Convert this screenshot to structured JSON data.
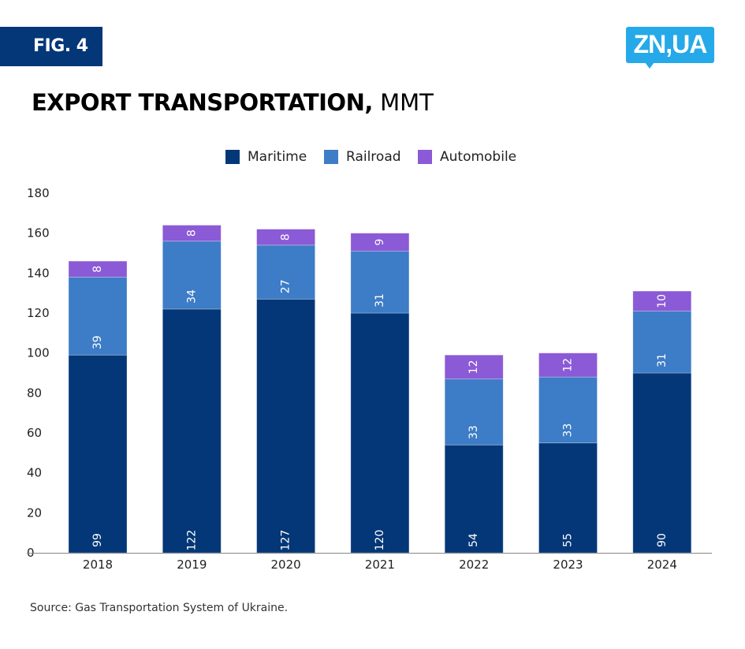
{
  "header": {
    "fig_label": "FIG. 4",
    "logo_text": "ZN,UA",
    "title_bold": "EXPORT TRANSPORTATION,",
    "title_unit": " MMT"
  },
  "colors": {
    "badge": "#043777",
    "logo": "#25a9e8",
    "maritime": "#043777",
    "railroad": "#3d7cc6",
    "automobile": "#8b5ad6"
  },
  "source": "Source: Gas Transportation System of Ukraine.",
  "chart_data": {
    "type": "bar",
    "stacked": true,
    "title": "EXPORT TRANSPORTATION, MMT",
    "xlabel": "",
    "ylabel": "",
    "ylim": [
      0,
      180
    ],
    "yticks": [
      0,
      20,
      40,
      60,
      80,
      100,
      120,
      140,
      160,
      180
    ],
    "grid": false,
    "legend_position": "top-center",
    "categories": [
      "2018",
      "2019",
      "2020",
      "2021",
      "2022",
      "2023",
      "2024"
    ],
    "series": [
      {
        "name": "Maritime",
        "color": "#043777",
        "values": [
          99,
          122,
          127,
          120,
          54,
          55,
          90
        ]
      },
      {
        "name": "Railroad",
        "color": "#3d7cc6",
        "values": [
          39,
          34,
          27,
          31,
          33,
          33,
          31
        ]
      },
      {
        "name": "Automobile",
        "color": "#8b5ad6",
        "values": [
          8,
          8,
          8,
          9,
          12,
          12,
          10
        ]
      }
    ]
  }
}
